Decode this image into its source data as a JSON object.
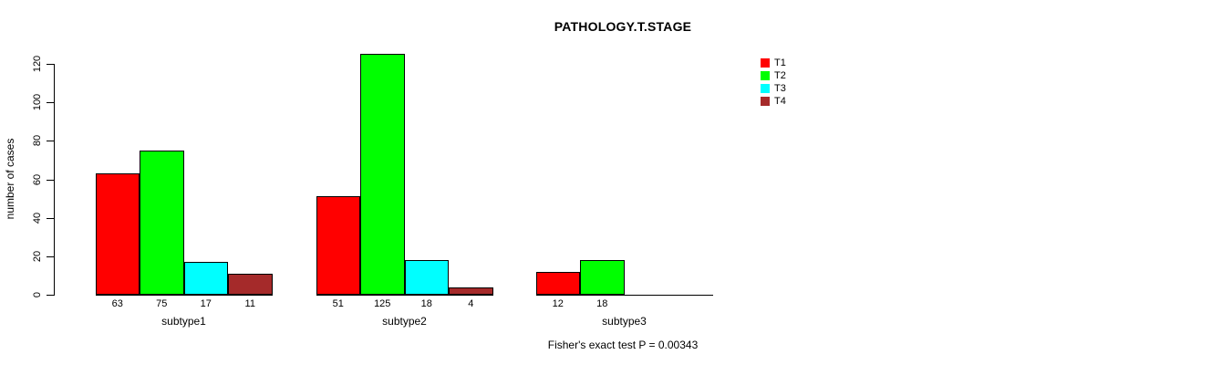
{
  "chart_data": {
    "type": "bar",
    "title": "PATHOLOGY.T.STAGE",
    "ylabel": "number of cases",
    "annotation": "Fisher's exact test P = 0.00343",
    "categories": [
      "subtype1",
      "subtype2",
      "subtype3"
    ],
    "series": [
      {
        "name": "T1",
        "color": "#FF0000",
        "values": [
          63,
          51,
          12
        ]
      },
      {
        "name": "T2",
        "color": "#00FF00",
        "values": [
          75,
          125,
          18
        ]
      },
      {
        "name": "T3",
        "color": "#00FFFF",
        "values": [
          17,
          18,
          0
        ]
      },
      {
        "name": "T4",
        "color": "#A52A2A",
        "values": [
          11,
          4,
          0
        ]
      }
    ],
    "ylim": [
      0,
      120
    ],
    "yticks": [
      0,
      20,
      40,
      60,
      80,
      100,
      120
    ],
    "grid": false,
    "legend_position": "right",
    "axis_color": "#000000",
    "background_color": "#FFFFFF"
  }
}
